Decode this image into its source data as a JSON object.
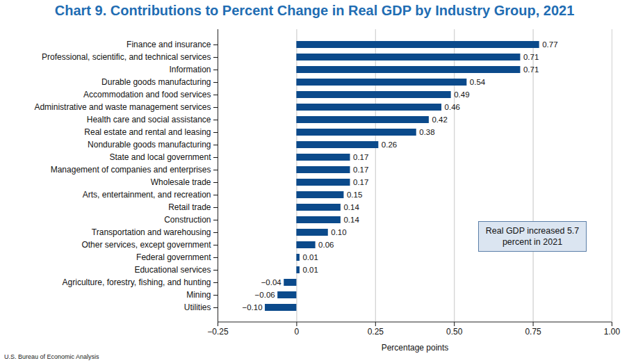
{
  "chart_data": {
    "type": "bar",
    "orientation": "horizontal",
    "title": "Chart 9. Contributions to Percent Change in Real GDP by Industry Group, 2021",
    "categories": [
      "Finance and insurance",
      "Professional, scientific, and technical services",
      "Information",
      "Durable goods manufacturing",
      "Accommodation and food services",
      "Administrative and waste management services",
      "Health care and social assistance",
      "Real estate and rental and leasing",
      "Nondurable goods manufacturing",
      "State and local government",
      "Management of companies and enterprises",
      "Wholesale trade",
      "Arts, entertainment, and recreation",
      "Retail trade",
      "Construction",
      "Transportation and warehousing",
      "Other services, except government",
      "Federal government",
      "Educational services",
      "Agriculture, forestry, fishing, and hunting",
      "Mining",
      "Utilities"
    ],
    "values": [
      0.77,
      0.71,
      0.71,
      0.54,
      0.49,
      0.46,
      0.42,
      0.38,
      0.26,
      0.17,
      0.17,
      0.17,
      0.15,
      0.14,
      0.14,
      0.1,
      0.06,
      0.01,
      0.01,
      -0.04,
      -0.06,
      -0.1
    ],
    "value_labels": [
      "0.77",
      "0.71",
      "0.71",
      "0.54",
      "0.49",
      "0.46",
      "0.42",
      "0.38",
      "0.26",
      "0.17",
      "0.17",
      "0.17",
      "0.15",
      "0.14",
      "0.14",
      "0.10",
      "0.06",
      "0.01",
      "0.01",
      "−0.04",
      "−0.06",
      "−0.10"
    ],
    "data_labels": true,
    "color": "#0b4a8b",
    "x_label": "Percentage points",
    "xlim": [
      -0.25,
      1.0
    ],
    "xticks": [
      {
        "value": -0.25,
        "label": "−0.25"
      },
      0,
      0.25,
      {
        "value": 0.5,
        "label": "0.50"
      },
      0.75,
      {
        "value": 1.0,
        "label": "1.00"
      }
    ],
    "grid": true,
    "annotation": "Real GDP increased 5.7 percent in 2021",
    "source": "U.S. Bureau of Economic Analysis"
  }
}
